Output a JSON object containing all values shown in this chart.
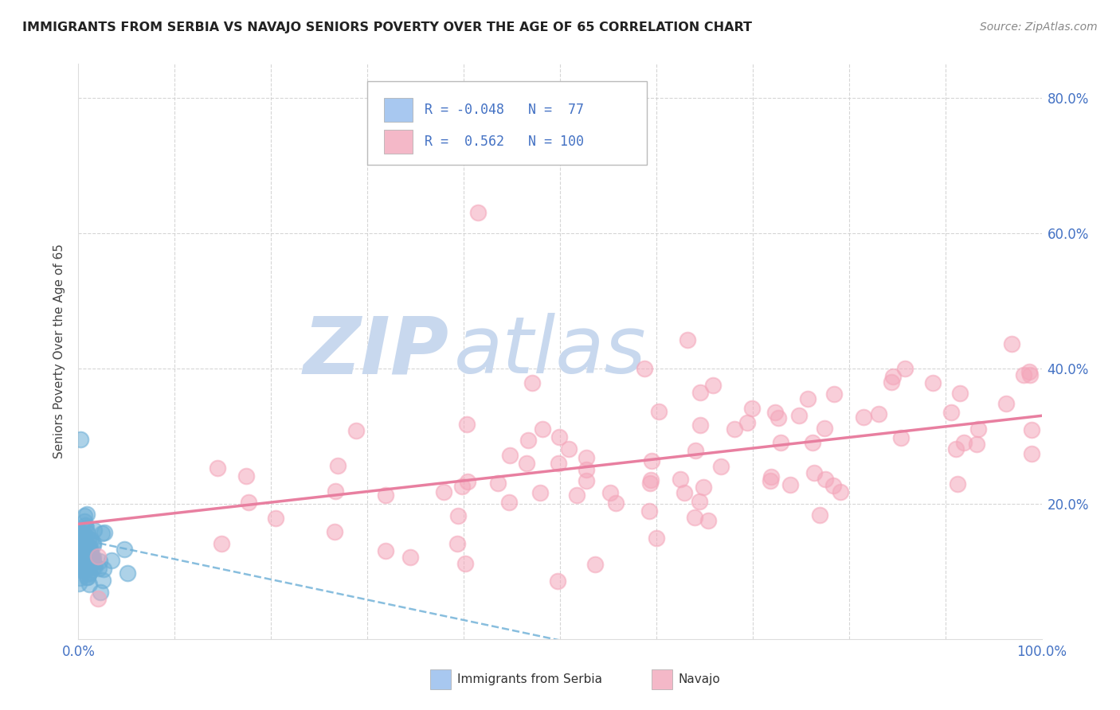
{
  "title": "IMMIGRANTS FROM SERBIA VS NAVAJO SENIORS POVERTY OVER THE AGE OF 65 CORRELATION CHART",
  "source": "Source: ZipAtlas.com",
  "ylabel": "Seniors Poverty Over the Age of 65",
  "xlim": [
    0,
    1.0
  ],
  "ylim": [
    0,
    0.85
  ],
  "serbia_R": -0.048,
  "serbia_N": 77,
  "navajo_R": 0.562,
  "navajo_N": 100,
  "serbia_color": "#6baed6",
  "navajo_color": "#f4a6ba",
  "serbia_line_color": "#6baed6",
  "navajo_line_color": "#e87fa0",
  "background_color": "#ffffff",
  "grid_color": "#cccccc",
  "watermark_zip": "ZIP",
  "watermark_atlas": "atlas",
  "watermark_color": "#c8d8ee",
  "legend_blue_color": "#a8c8f0",
  "legend_pink_color": "#f4b8c8",
  "tick_color": "#4472c4",
  "title_color": "#222222",
  "source_color": "#888888",
  "ylabel_color": "#444444"
}
